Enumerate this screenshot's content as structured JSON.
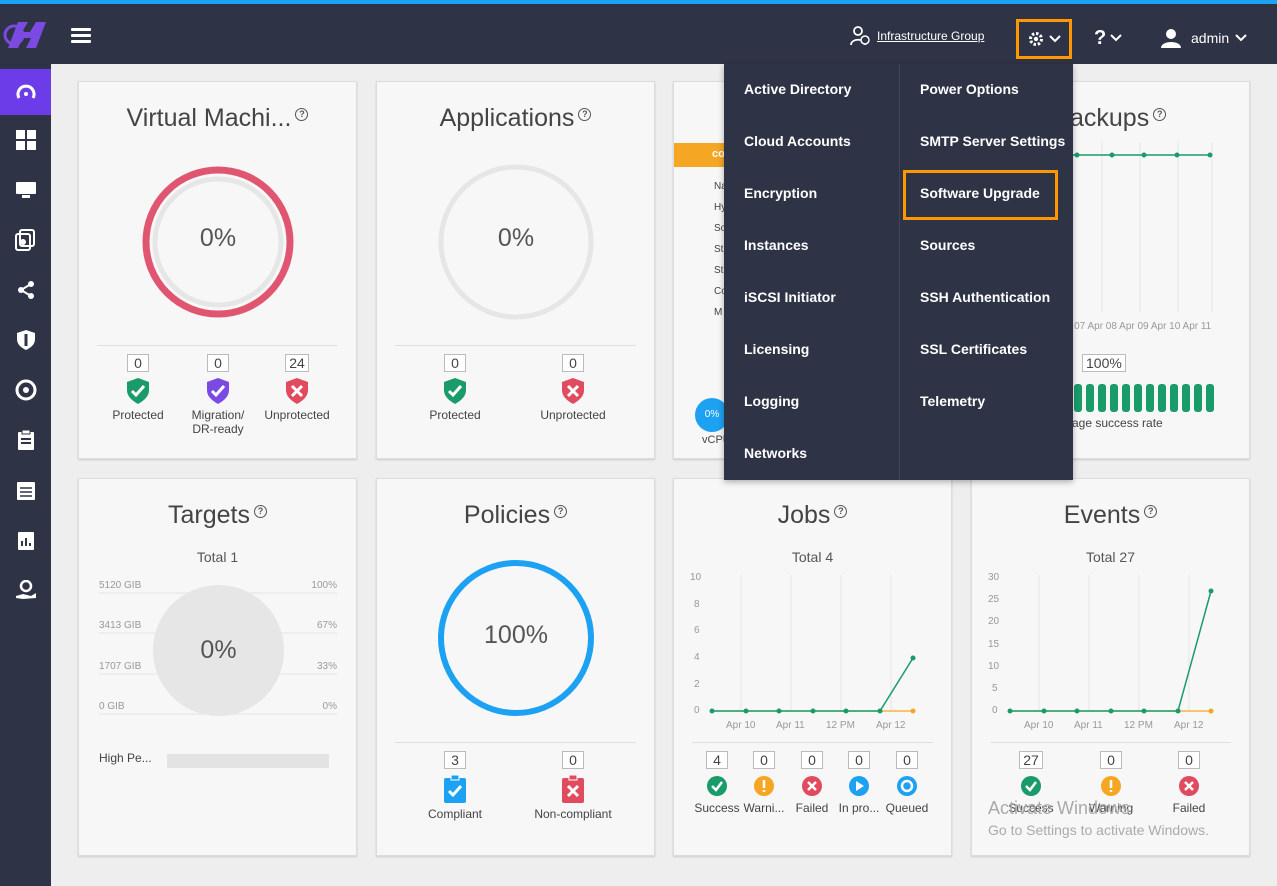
{
  "topbar": {
    "group_label": "Infrastructure Group",
    "help_label": "?",
    "user_label": "admin"
  },
  "colors": {
    "topbar": "#2f3346",
    "accent": "#1da1f2",
    "highlight": "#ff9800",
    "protected": "#1a9b6a",
    "migration": "#7b4ae3",
    "unprotected": "#e04b5f",
    "vm_ring": "#e05670",
    "policy_ring": "#1da1f2"
  },
  "menu": {
    "left": [
      "Active Directory",
      "Cloud Accounts",
      "Encryption",
      "Instances",
      "iSCSI Initiator",
      "Licensing",
      "Logging",
      "Networks"
    ],
    "right": [
      "Power Options",
      "SMTP Server Settings",
      "Software Upgrade",
      "Sources",
      "SSH Authentication",
      "SSL Certificates",
      "Telemetry"
    ]
  },
  "cards": {
    "vm": {
      "title": "Virtual Machi...",
      "percent": "0%",
      "stats": [
        {
          "value": "0",
          "label": "Protected"
        },
        {
          "value": "0",
          "label": "Migration/",
          "label2": "DR-ready"
        },
        {
          "value": "24",
          "label": "Unprotected"
        }
      ]
    },
    "apps": {
      "title": "Applications",
      "percent": "0%",
      "stats": [
        {
          "value": "0",
          "label": "Protected"
        },
        {
          "value": "0",
          "label": "Unprotected"
        }
      ]
    },
    "middle": {
      "banner": "co",
      "list": [
        "Na",
        "Hy",
        "So",
        "St",
        "St",
        "Co",
        "M"
      ],
      "badge": "0%",
      "badge_label": "vCPU"
    },
    "backups": {
      "title": "ackups",
      "xlabels": "r 07 Apr 08 Apr 09 Apr 10 Apr 11",
      "rate": "100%",
      "rate_label": "rage success rate"
    },
    "targets": {
      "title": "Targets",
      "total": "Total 1",
      "percent": "0%",
      "left_axis": [
        "5120 GIB",
        "3413 GIB",
        "1707 GIB",
        "0 GIB"
      ],
      "right_axis": [
        "100%",
        "67%",
        "33%",
        "0%"
      ],
      "row_label": "High Pe..."
    },
    "policies": {
      "title": "Policies",
      "percent": "100%",
      "stats": [
        {
          "value": "3",
          "label": "Compliant"
        },
        {
          "value": "0",
          "label": "Non-compliant"
        }
      ]
    },
    "jobs": {
      "title": "Jobs",
      "total": "Total 4",
      "y_axis": [
        "10",
        "8",
        "6",
        "4",
        "2",
        "0"
      ],
      "x_axis": [
        "Apr 10",
        "Apr 11",
        "12 PM",
        "Apr 12"
      ],
      "stats": [
        {
          "value": "4",
          "label": "Success"
        },
        {
          "value": "0",
          "label": "Warni..."
        },
        {
          "value": "0",
          "label": "Failed"
        },
        {
          "value": "0",
          "label": "In pro..."
        },
        {
          "value": "0",
          "label": "Queued"
        }
      ]
    },
    "events": {
      "title": "Events",
      "total": "Total 27",
      "y_axis": [
        "30",
        "25",
        "20",
        "15",
        "10",
        "5",
        "0"
      ],
      "x_axis": [
        "Apr 10",
        "Apr 11",
        "12 PM",
        "Apr 12"
      ],
      "stats": [
        {
          "value": "27",
          "label": "Success"
        },
        {
          "value": "0",
          "label": "Warning"
        },
        {
          "value": "0",
          "label": "Failed"
        }
      ]
    }
  },
  "watermark": {
    "line1": "Activate Windows",
    "line2": "Go to Settings to activate Windows."
  }
}
